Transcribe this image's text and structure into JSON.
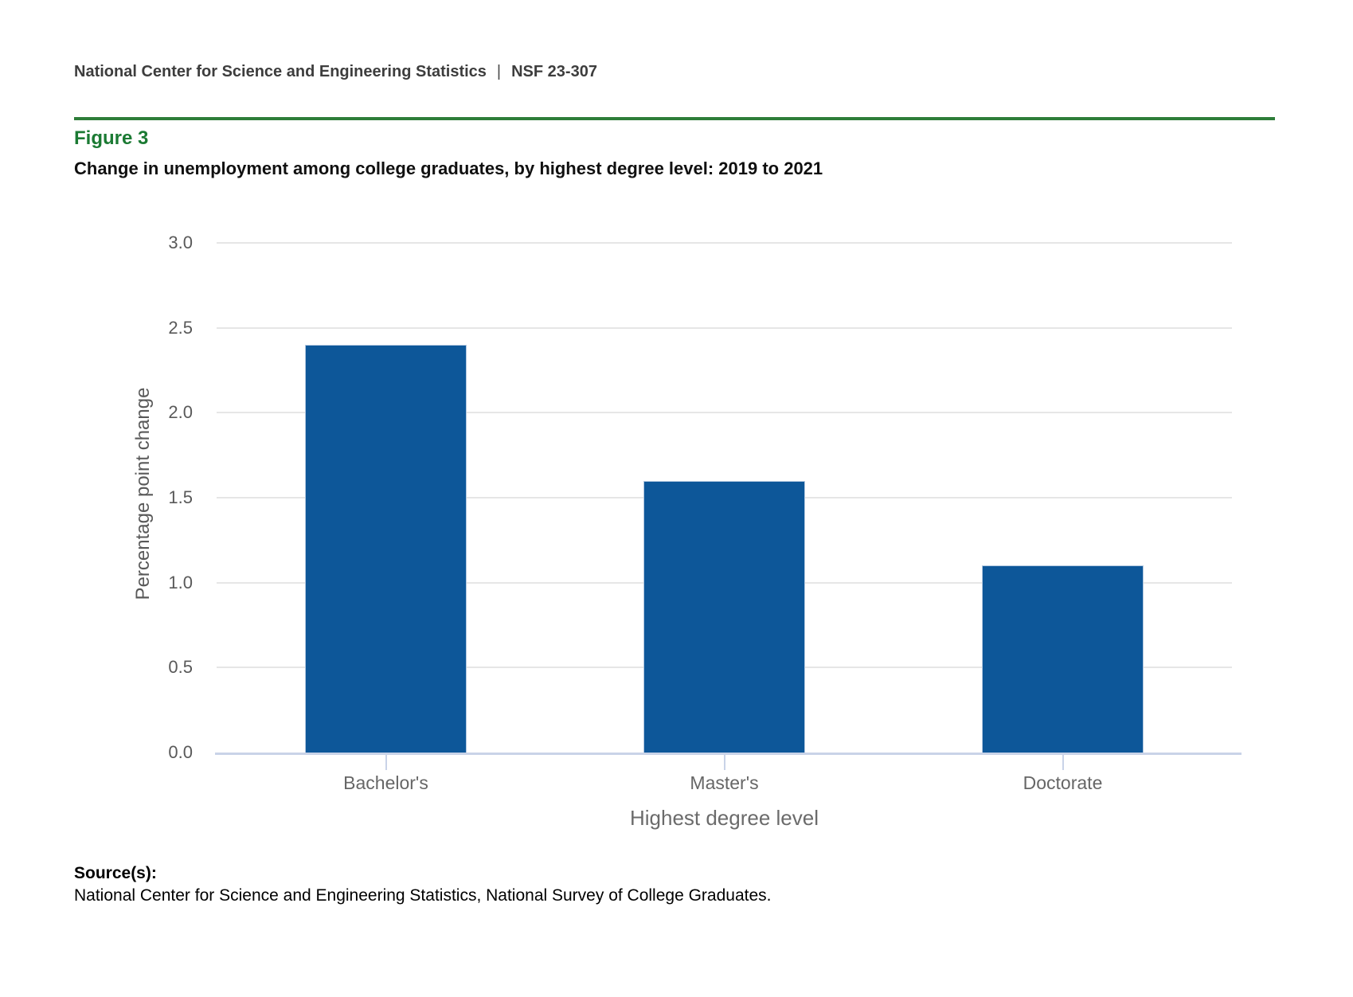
{
  "header": {
    "agency": "National Center for Science and Engineering Statistics",
    "separator": "|",
    "report_number": "NSF 23-307"
  },
  "figure": {
    "label": "Figure 3",
    "title": "Change in unemployment among college graduates, by highest degree level: 2019 to 2021"
  },
  "source": {
    "heading": "Source(s):",
    "text": "National Center for Science and Engineering Statistics, National Survey of College Graduates."
  },
  "chart_data": {
    "type": "bar",
    "categories": [
      "Bachelor's",
      "Master's",
      "Doctorate"
    ],
    "values": [
      2.4,
      1.6,
      1.1
    ],
    "title": "Change in unemployment among college graduates, by highest degree level: 2019 to 2021",
    "xlabel": "Highest degree level",
    "ylabel": "Percentage point change",
    "ylim": [
      0,
      3.0
    ],
    "yticks": [
      0.0,
      0.5,
      1.0,
      1.5,
      2.0,
      2.5,
      3.0
    ],
    "ytick_labels": [
      "0.0",
      "0.5",
      "1.0",
      "1.5",
      "2.0",
      "2.5",
      "3.0"
    ],
    "grid": true,
    "legend": false,
    "bar_color": "#0d5799",
    "gridline_color": "#e6e6e6",
    "axis_line_color": "#c9d3e8",
    "tick_label_color": "#595959",
    "accent_green": "#2e7d39"
  }
}
